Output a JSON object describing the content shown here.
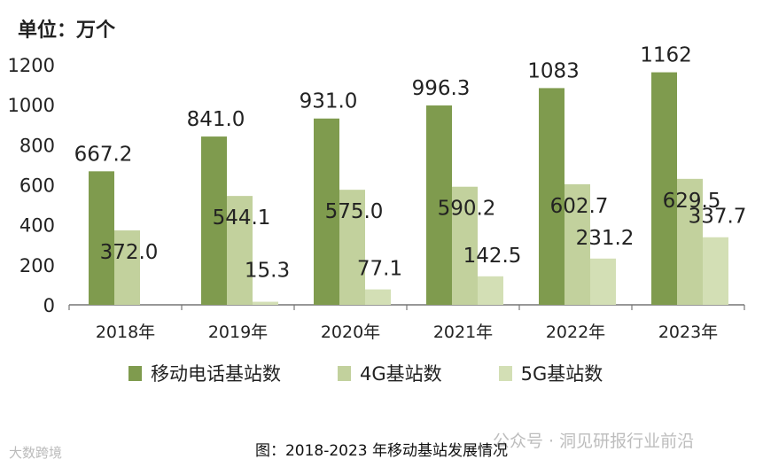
{
  "unit_label": "单位：万个",
  "caption": "图：2018-2023 年移动基站发展情况",
  "watermark_left": "大数跨境",
  "watermark_right": "公众号 · 洞见研报行业前沿",
  "colors": {
    "series1": "#7f9b4e",
    "series2": "#c2d19d",
    "series3": "#d3dfb5",
    "axis": "#777777"
  },
  "chart_data": {
    "type": "bar",
    "categories": [
      "2018年",
      "2019年",
      "2020年",
      "2021年",
      "2022年",
      "2023年"
    ],
    "series": [
      {
        "name": "移动电话基站数",
        "values": [
          667.2,
          841.0,
          931.0,
          996.3,
          1083,
          1162
        ],
        "labels": [
          "667.2",
          "841.0",
          "931.0",
          "996.3",
          "1083",
          "1162"
        ]
      },
      {
        "name": "4G基站数",
        "values": [
          372.0,
          544.1,
          575.0,
          590.2,
          602.7,
          629.5
        ],
        "labels": [
          "372.0",
          "544.1",
          "575.0",
          "590.2",
          "602.7",
          "629.5"
        ]
      },
      {
        "name": "5G基站数",
        "values": [
          null,
          15.3,
          77.1,
          142.5,
          231.2,
          337.7
        ],
        "labels": [
          "",
          "15.3",
          "77.1",
          "142.5",
          "231.2",
          "337.7"
        ]
      }
    ],
    "yticks": [
      "0",
      "200",
      "400",
      "600",
      "800",
      "1000",
      "1200"
    ],
    "ylim": [
      0,
      1200
    ],
    "ylabel": "单位：万个",
    "legend_position": "bottom"
  }
}
